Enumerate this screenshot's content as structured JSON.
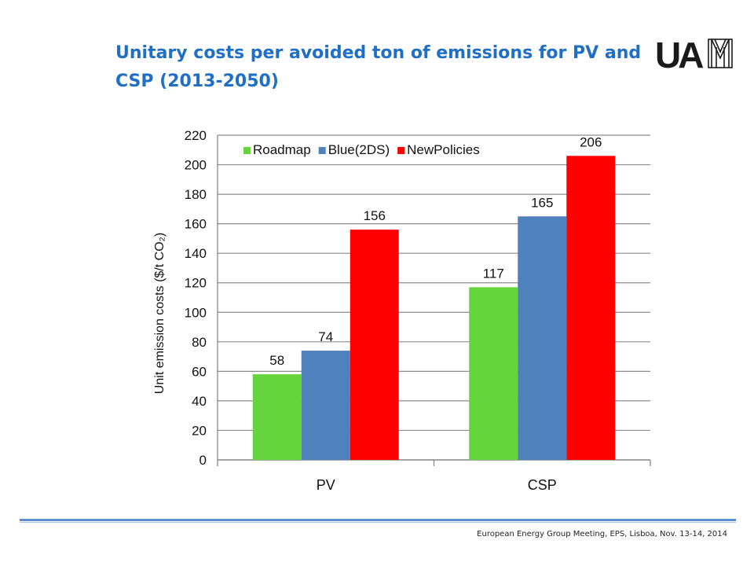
{
  "slide": {
    "title": "Unitary costs per avoided ton of emissions for PV and CSP (2013-2050)",
    "footer": "European Energy Group Meeting, EPS, Lisboa, Nov. 13-14, 2014",
    "logo_text": "UAM"
  },
  "colors": {
    "title": "#1f6fc6",
    "Roadmap": "#66d43c",
    "Blue(2DS)": "#4f81bd",
    "NewPolicies": "#ff0000",
    "grid": "#8c8c8c"
  },
  "chart_data": {
    "type": "bar",
    "title": "",
    "xlabel": "",
    "ylabel": "Unit emission costs ($/t CO₂)",
    "categories": [
      "PV",
      "CSP"
    ],
    "series": [
      {
        "name": "Roadmap",
        "values": [
          58,
          117
        ],
        "labels": [
          "58",
          "117"
        ]
      },
      {
        "name": "Blue(2DS)",
        "values": [
          74,
          165
        ],
        "labels": [
          "74",
          "165"
        ]
      },
      {
        "name": "NewPolicies",
        "values": [
          156,
          206
        ],
        "labels": [
          "156",
          "206"
        ]
      }
    ],
    "ylim": [
      0,
      220
    ],
    "yticks": [
      0,
      20,
      40,
      60,
      80,
      100,
      120,
      140,
      160,
      180,
      200,
      220
    ],
    "grid": true,
    "legend": "top"
  }
}
